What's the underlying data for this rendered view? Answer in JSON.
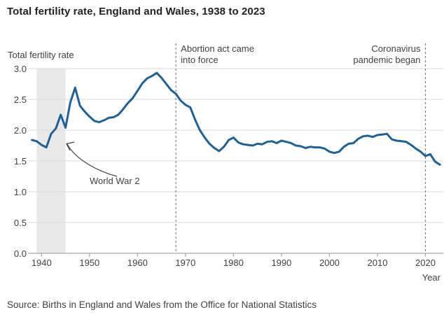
{
  "header": {
    "title": "Total fertility rate, England and Wales, 1938 to 2023"
  },
  "chart_data": {
    "type": "line",
    "title": "Total fertility rate, England and Wales, 1938 to 2023",
    "y_axis_title": "Total fertility rate",
    "x_axis_title": "Year",
    "ylim": [
      0.0,
      3.0
    ],
    "xlim": [
      1938,
      2023
    ],
    "grid": "horizontal",
    "legend_position": "none",
    "ytick_labels": [
      "0.0",
      "0.5",
      "1.0",
      "1.5",
      "2.0",
      "2.5",
      "3.0"
    ],
    "ytick_values": [
      0.0,
      0.5,
      1.0,
      1.5,
      2.0,
      2.5,
      3.0
    ],
    "xtick_values": [
      1940,
      1950,
      1960,
      1970,
      1980,
      1990,
      2000,
      2010,
      2020
    ],
    "series": [
      {
        "name": "Total fertility rate",
        "color": "#206095",
        "x": [
          1938,
          1939,
          1940,
          1941,
          1942,
          1943,
          1944,
          1945,
          1946,
          1947,
          1948,
          1949,
          1950,
          1951,
          1952,
          1953,
          1954,
          1955,
          1956,
          1957,
          1958,
          1959,
          1960,
          1961,
          1962,
          1963,
          1964,
          1965,
          1966,
          1967,
          1968,
          1969,
          1970,
          1971,
          1972,
          1973,
          1974,
          1975,
          1976,
          1977,
          1978,
          1979,
          1980,
          1981,
          1982,
          1983,
          1984,
          1985,
          1986,
          1987,
          1988,
          1989,
          1990,
          1991,
          1992,
          1993,
          1994,
          1995,
          1996,
          1997,
          1998,
          1999,
          2000,
          2001,
          2002,
          2003,
          2004,
          2005,
          2006,
          2007,
          2008,
          2009,
          2010,
          2011,
          2012,
          2013,
          2014,
          2015,
          2016,
          2017,
          2018,
          2019,
          2020,
          2021,
          2022,
          2023
        ],
        "values": [
          1.84,
          1.82,
          1.76,
          1.72,
          1.94,
          2.03,
          2.25,
          2.04,
          2.45,
          2.69,
          2.4,
          2.3,
          2.22,
          2.15,
          2.13,
          2.16,
          2.2,
          2.21,
          2.25,
          2.34,
          2.44,
          2.52,
          2.64,
          2.76,
          2.84,
          2.88,
          2.93,
          2.85,
          2.75,
          2.65,
          2.59,
          2.48,
          2.41,
          2.37,
          2.17,
          2.0,
          1.88,
          1.78,
          1.71,
          1.66,
          1.73,
          1.84,
          1.88,
          1.8,
          1.77,
          1.76,
          1.75,
          1.78,
          1.77,
          1.81,
          1.82,
          1.79,
          1.83,
          1.81,
          1.79,
          1.75,
          1.74,
          1.71,
          1.73,
          1.72,
          1.72,
          1.7,
          1.65,
          1.63,
          1.65,
          1.73,
          1.78,
          1.79,
          1.86,
          1.9,
          1.91,
          1.89,
          1.92,
          1.93,
          1.94,
          1.85,
          1.83,
          1.82,
          1.81,
          1.76,
          1.7,
          1.65,
          1.58,
          1.61,
          1.49,
          1.44
        ]
      }
    ],
    "annotations": {
      "ww2_band": {
        "label": "World War 2",
        "start_year": 1939,
        "end_year": 1945,
        "band_color": "#e9e9e9"
      },
      "abortion_line": {
        "line1": "Abortion act came",
        "line2": "into force",
        "year": 1968
      },
      "covid_line": {
        "line1": "Coronavirus",
        "line2": "pandemic began",
        "year": 2020
      }
    },
    "colors": {
      "line": "#206095",
      "gridline": "#d9d9d9",
      "axis": "#a6a6a6",
      "dashed_line": "#7f7f7f",
      "text": "#414042",
      "title": "#222222"
    }
  },
  "footer": {
    "source": "Source: Births in England and Wales from the Office for National Statistics"
  }
}
